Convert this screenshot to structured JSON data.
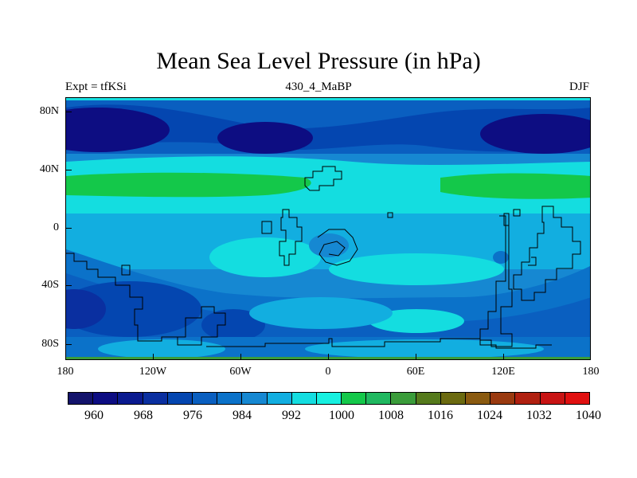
{
  "title": "Mean Sea Level Pressure (in hPa)",
  "subtitle_left": "Expt = tfKSi",
  "subtitle_center": "430_4_MaBP",
  "subtitle_right": "DJF",
  "colors": {
    "c960": "#13136b",
    "c964": "#0d0d82",
    "c968": "#0a1a8f",
    "c972": "#0a2fa0",
    "c976": "#0446b0",
    "c980": "#0a5fc0",
    "c984": "#0b72c9",
    "c988": "#1688d2",
    "c992": "#12aee0",
    "c996": "#14dde0",
    "c1000": "#17f0e0",
    "c1004": "#14c84a",
    "c1008": "#20b860",
    "c1012": "#3a9c3a",
    "c1016": "#557a1c",
    "c1020": "#6b6a10",
    "c1024": "#8a5a10",
    "c1028": "#9a3a10",
    "c1032": "#b02010",
    "c1036": "#c81414",
    "c1040": "#e01010"
  },
  "map": {
    "lat_ticks": [
      "80N",
      "40N",
      "0",
      "40S",
      "80S"
    ],
    "lon_ticks": [
      "180",
      "120W",
      "60W",
      "0",
      "60E",
      "120E",
      "180"
    ]
  },
  "colorbar": {
    "labels": [
      "960",
      "968",
      "976",
      "984",
      "992",
      "1000",
      "1008",
      "1016",
      "1024",
      "1032",
      "1040"
    ]
  }
}
